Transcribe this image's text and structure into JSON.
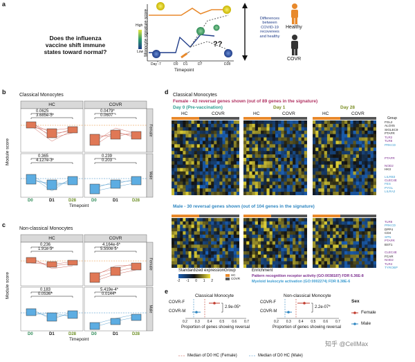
{
  "panel_a": {
    "letter": "a",
    "question": "Does the influenza vaccine shift immune states toward normal?",
    "question_lines": [
      "Does the influenza",
      "vaccine shift immune",
      "states toward normal?"
    ],
    "y_axis": "Monocyte signature score",
    "legend_high": "High",
    "legend_low": "Low",
    "x_axis": "Timepoint",
    "ticks": [
      "Day -7",
      "D0",
      "D1",
      "D7",
      "D28"
    ],
    "question_marks": "??",
    "diff_text_lines": [
      "Differences",
      "between",
      "COVID-19",
      "recoverees",
      "and healthy"
    ],
    "healthy_label": "Healthy",
    "covr_label": "COVR",
    "colors": {
      "healthy": "#e8892b",
      "covr": "#333333"
    }
  },
  "panel_b": {
    "letter": "b",
    "title": "Classical Monocytes",
    "facet_hc": "HC",
    "facet_covr": "COVR",
    "strip_female": "Female",
    "strip_male": "Male",
    "y_label": "Module score",
    "x_label": "Timepoint",
    "x_ticks": [
      "D0",
      "D1",
      "D28"
    ],
    "pvals": {
      "hc_female": [
        "0.0625",
        "3.685e-5*"
      ],
      "covr_female": [
        "0.0479*",
        "0.0607"
      ],
      "hc_male": [
        "0.365",
        "4.127e-3*"
      ],
      "covr_male": [
        "0.239",
        "0.203"
      ]
    }
  },
  "panel_c": {
    "letter": "c",
    "title": "Non-classical Monocytes",
    "facet_hc": "HC",
    "facet_covr": "COVR",
    "strip_female": "Female",
    "strip_male": "Male",
    "y_label": "Module score",
    "x_label": "Timepoint",
    "x_ticks": [
      "D0",
      "D1",
      "D28"
    ],
    "pvals": {
      "hc_female": [
        "0.236",
        "1.91e-5*"
      ],
      "covr_female": [
        "4.164e-6*",
        "5.550e-5*"
      ],
      "hc_male": [
        "0.183",
        "0.0536*"
      ],
      "covr_male": [
        "5.419e-4*",
        "0.0144*"
      ]
    }
  },
  "panel_d": {
    "letter": "d",
    "title": "Classical Monocytes",
    "female_header": "Female - 43 reversal genes shown (out of 89 genes in the signature)",
    "male_header": "Male - 30 reversal genes shown (out of 104 genes in the signature)",
    "day0": "Day 0 (Pre-vaccination)",
    "day1": "Day 1",
    "day28": "Day 28",
    "hc": "HC",
    "covr": "COVR",
    "group_label": "Group",
    "female_genes": [
      {
        "name": "FGL2",
        "color": "#222222"
      },
      {
        "name": "ALOX5",
        "color": "#222222"
      },
      {
        "name": "SIGLEC9",
        "color": "#222222"
      },
      {
        "name": "PTAFR",
        "color": "#222222"
      },
      {
        "name": "TLR2",
        "color": "#7b2d8e"
      },
      {
        "name": "TLR8",
        "color": "#7b2d8e"
      },
      {
        "name": "PRKCD",
        "color": "#3c9bd0"
      },
      {
        "name": "PTAFR",
        "color": "#7b2d8e"
      },
      {
        "name": "NOD2",
        "color": "#7b2d8e"
      },
      {
        "name": "HK3",
        "color": "#222222"
      },
      {
        "name": "LILRB3",
        "color": "#3c9bd0"
      },
      {
        "name": "CLEC4E",
        "color": "#7b2d8e"
      },
      {
        "name": "FES",
        "color": "#3c9bd0"
      },
      {
        "name": "PYGL",
        "color": "#3c9bd0"
      },
      {
        "name": "LILRA2",
        "color": "#3c9bd0"
      }
    ],
    "male_genes": [
      {
        "name": "TLR8",
        "color": "#7b2d8e"
      },
      {
        "name": "PRKCD",
        "color": "#3c9bd0"
      },
      {
        "name": "DPP4",
        "color": "#222222"
      },
      {
        "name": "CD4",
        "color": "#222222"
      },
      {
        "name": "SPN",
        "color": "#3c9bd0"
      },
      {
        "name": "PTAFR",
        "color": "#7b2d8e"
      },
      {
        "name": "BST1",
        "color": "#222222"
      },
      {
        "name": "CLEC4E",
        "color": "#7b2d8e"
      },
      {
        "name": "FCAR",
        "color": "#222222"
      },
      {
        "name": "NOD2",
        "color": "#7b2d8e"
      },
      {
        "name": "TLR4",
        "color": "#7b2d8e"
      },
      {
        "name": "TYROBP",
        "color": "#3c9bd0"
      }
    ],
    "legend": {
      "expr_title": "Standardized expression",
      "expr_ticks": [
        "-2",
        "-1",
        "0",
        "1",
        "2"
      ],
      "group_title": "Group",
      "group_hc": "HC",
      "group_covr": "COVR",
      "enrich_title": "Enrichment",
      "enrich_1": "Pattern recognition receptor activity (GO:0038187) FDR 6.36E-8",
      "enrich_2": "Myeloid leukocyte activation (GO:0002274) FDR 8.38E-6"
    },
    "colors": {
      "hc": "#e8892b",
      "covr": "#555555",
      "low": "#1a5fb4",
      "mid": "#1a1a1a",
      "high": "#f3e33a"
    }
  },
  "panel_e": {
    "letter": "e",
    "left_title": "Classical Monocyte",
    "right_title": "Non-classical Monocyte",
    "rows": [
      "COVR-F",
      "COVR-M"
    ],
    "x_label": "Proportion of genes showing reversal",
    "x_ticks": [
      "0.2",
      "0.3",
      "0.4",
      "0.5",
      "0.6",
      "0.7"
    ],
    "left_p": "2.9e-05*",
    "right_p": "2.2e-07*",
    "sex_title": "Sex",
    "sex_female": "Female",
    "sex_male": "Male",
    "median_female": "Median of D0 HC (Female)",
    "median_male": "Median of D0 HC (Male)"
  },
  "watermark": "知乎 @CellMax"
}
